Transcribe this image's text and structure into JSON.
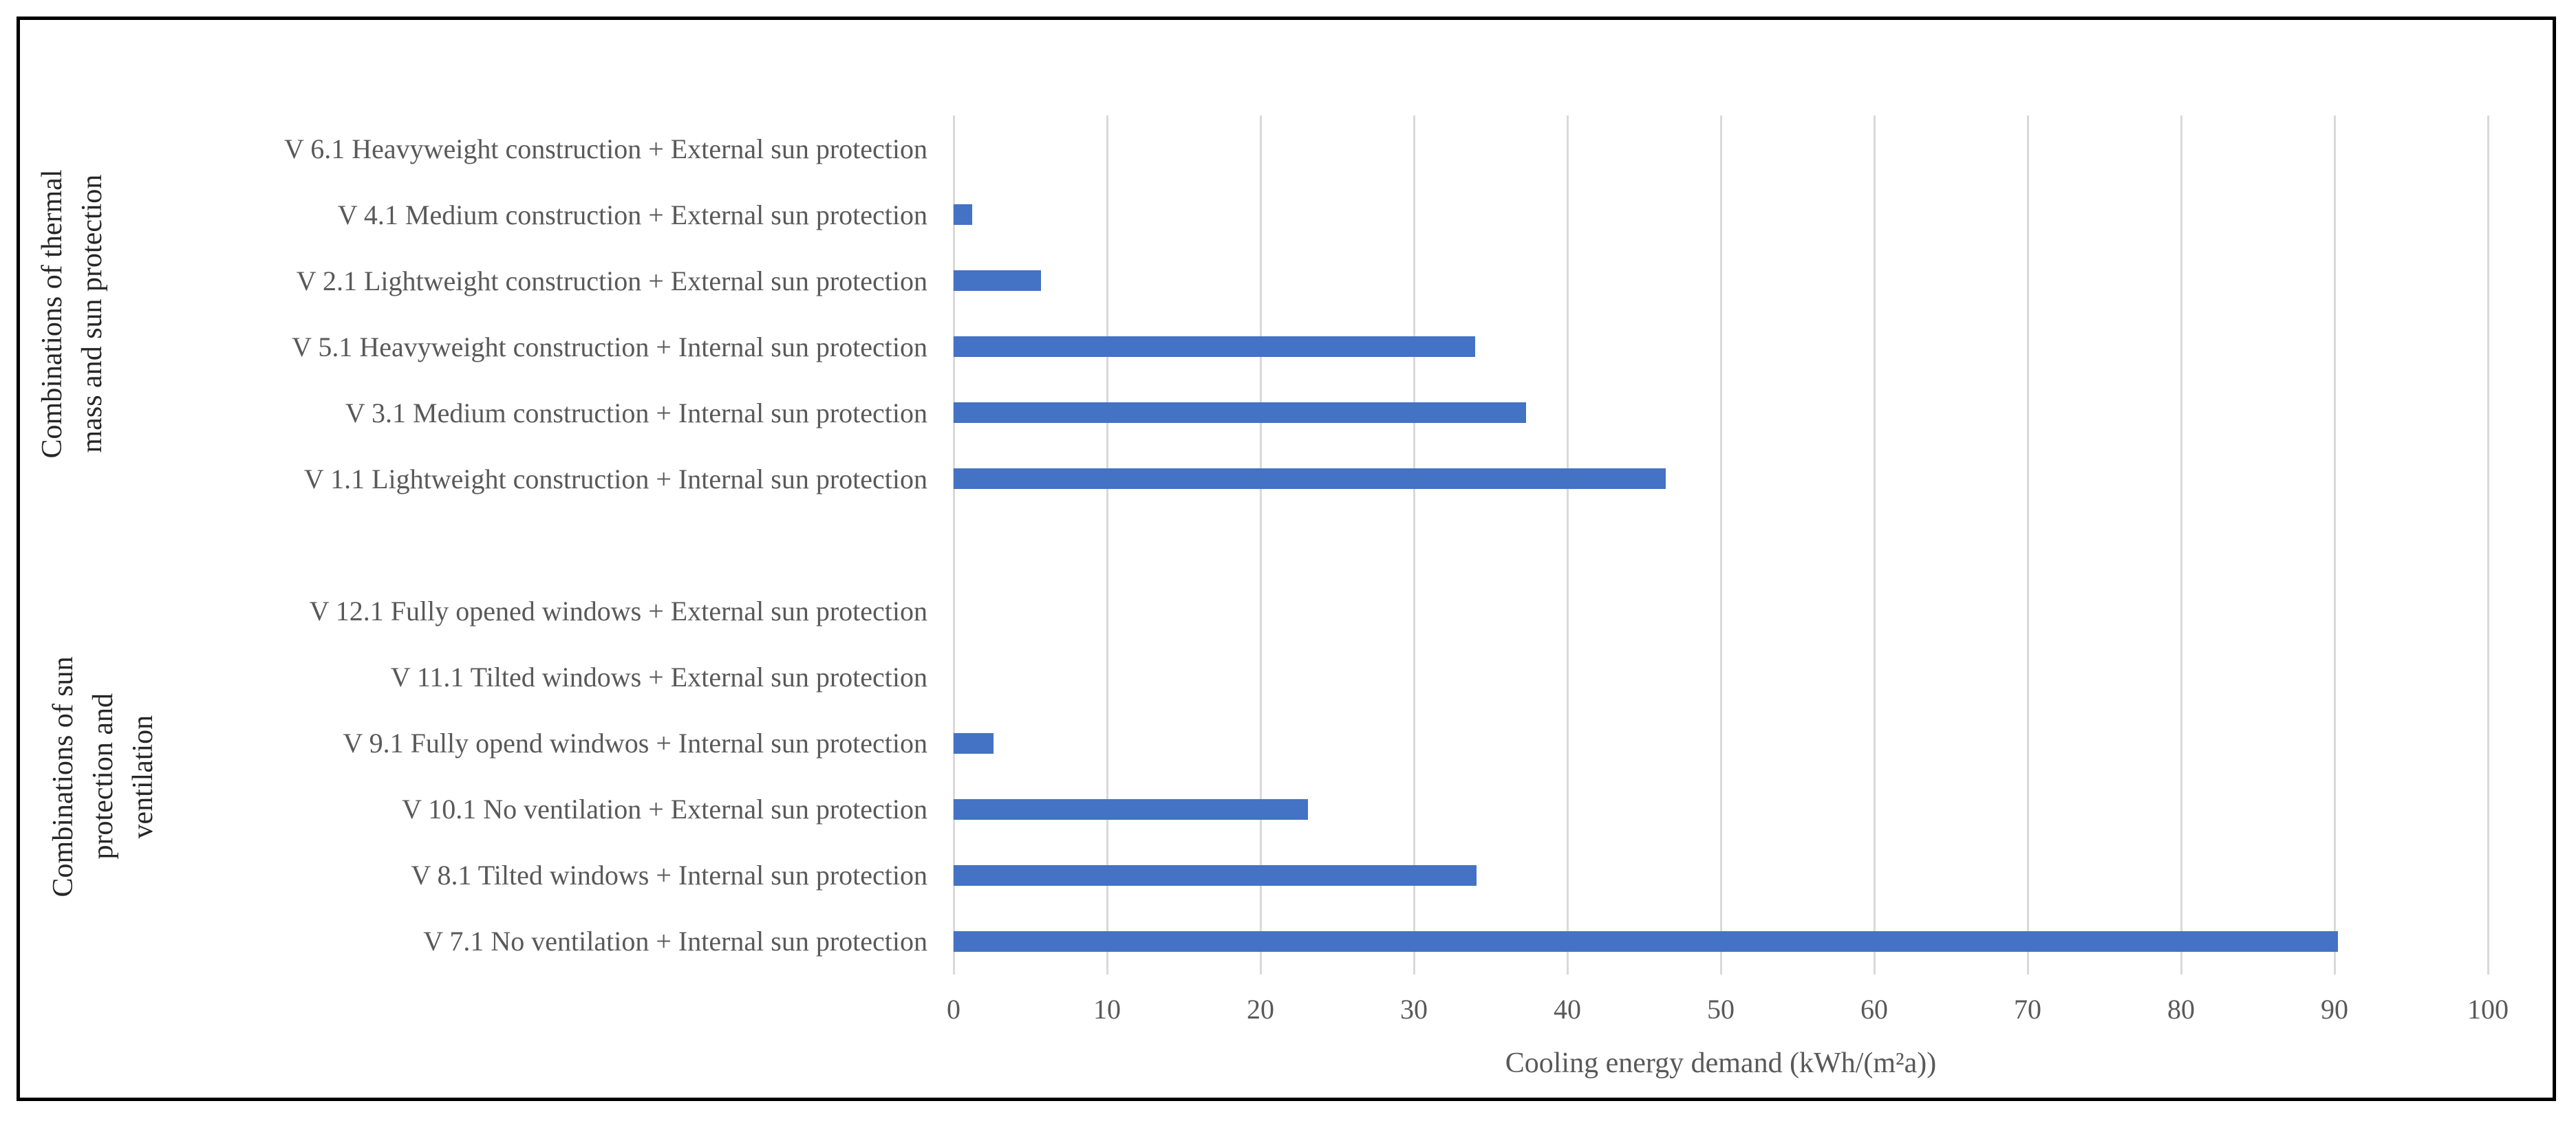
{
  "chart_data": {
    "type": "bar",
    "orientation": "horizontal",
    "title": "",
    "xlabel": "Cooling energy demand (kWh/(m²a))",
    "ylabel": "",
    "xlim": [
      0,
      100
    ],
    "xticks": [
      0,
      10,
      20,
      30,
      40,
      50,
      60,
      70,
      80,
      90,
      100
    ],
    "grid": true,
    "legend": false,
    "groups": [
      {
        "group_label": "Combinations of thermal mass and sun protection",
        "label_lines": [
          "Combinations of thermal",
          "mass and sun protection"
        ],
        "items": [
          {
            "category": "V 6.1 Heavyweight construction + External sun protection",
            "value": 0
          },
          {
            "category": "V 4.1 Medium construction + External sun protection",
            "value": 1.2
          },
          {
            "category": "V 2.1 Lightweight construction + External sun protection",
            "value": 5.7
          },
          {
            "category": "V 5.1 Heavyweight construction + Internal sun protection",
            "value": 34
          },
          {
            "category": "V 3.1 Medium construction + Internal sun protection",
            "value": 37.3
          },
          {
            "category": "V 1.1 Lightweight construction + Internal sun protection",
            "value": 46.4
          }
        ]
      },
      {
        "group_label": "Combinations of sun protection and ventilation",
        "label_lines": [
          "Combinations of sun",
          "protection and",
          "ventilation"
        ],
        "items": [
          {
            "category": "V 12.1 Fully opened windows + External sun protection",
            "value": 0
          },
          {
            "category": "V 11.1 Tilted windows + External sun protection",
            "value": 0
          },
          {
            "category": "V 9.1 Fully opend windwos + Internal sun protection",
            "value": 2.6
          },
          {
            "category": "V 10.1 No ventilation + External sun protection",
            "value": 23.1
          },
          {
            "category": "V 8.1 Tilted windows + Internal sun protection",
            "value": 34.1
          },
          {
            "category": "V 7.1 No ventilation + Internal sun protection",
            "value": 90.2
          }
        ]
      }
    ],
    "colors": {
      "bar": "#4472C4",
      "gridline": "#D9D9D9",
      "category_text": "#595959",
      "tick_text": "#595959",
      "axis_title_text": "#595959",
      "group_label_text": "#262626",
      "frame_border": "#000000",
      "background": "#FFFFFF"
    }
  }
}
